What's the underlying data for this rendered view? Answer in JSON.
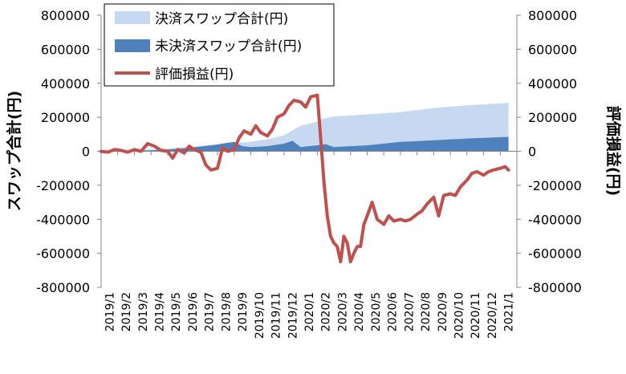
{
  "chart_data": {
    "type": "area+line",
    "title": "",
    "y_left_label": "スワップ合計(円)",
    "y_right_label": "評価損益(円)",
    "ylim": [
      -800000,
      800000
    ],
    "y_ticks": [
      800000,
      600000,
      400000,
      200000,
      0,
      -200000,
      -400000,
      -600000,
      -800000
    ],
    "x_labels": [
      "2019/1",
      "2019/2",
      "2019/3",
      "2019/4",
      "2019/5",
      "2019/6",
      "2019/7",
      "2019/8",
      "2019/9",
      "2019/10",
      "2019/11",
      "2019/12",
      "2020/1",
      "2020/2",
      "2020/3",
      "2020/4",
      "2020/5",
      "2020/6",
      "2020/7",
      "2020/8",
      "2020/9",
      "2020/10",
      "2020/11",
      "2020/12",
      "2021/1"
    ],
    "legend": [
      "決済スワップ合計(円)",
      "未決済スワップ合計(円)",
      "評価損益(円)"
    ],
    "colors": {
      "settled": "#c6d9f1",
      "unsettled": "#4f81bd",
      "pnl": "#c0504d"
    },
    "series": [
      {
        "name": "決済スワップ合計(円)",
        "type": "area",
        "x": [
          0,
          4,
          5,
          8,
          10,
          11,
          12,
          13,
          13.3,
          14,
          18,
          20,
          22,
          24.5
        ],
        "values": [
          0,
          15000,
          25000,
          45000,
          70000,
          95000,
          150000,
          175000,
          190000,
          205000,
          230000,
          255000,
          270000,
          285000
        ]
      },
      {
        "name": "未決済スワップ合計(円)",
        "type": "area",
        "x": [
          0,
          3,
          4,
          5,
          6,
          7,
          7.5,
          8,
          8.5,
          9,
          10,
          11,
          11.5,
          12,
          13,
          13.5,
          14,
          15,
          16,
          18,
          20,
          22,
          24.5
        ],
        "values": [
          0,
          5000,
          10000,
          18000,
          28000,
          40000,
          48000,
          55000,
          30000,
          25000,
          30000,
          45000,
          62000,
          25000,
          35000,
          42000,
          25000,
          30000,
          35000,
          55000,
          65000,
          75000,
          85000
        ]
      },
      {
        "name": "評価損益(円)",
        "type": "line",
        "x": [
          0,
          0.4,
          0.8,
          1.2,
          1.6,
          2,
          2.4,
          2.8,
          3.2,
          3.6,
          4,
          4.3,
          4.6,
          5,
          5.3,
          5.6,
          6,
          6.3,
          6.6,
          7,
          7.3,
          7.6,
          8,
          8.3,
          8.6,
          9,
          9.3,
          9.6,
          10,
          10.3,
          10.6,
          11,
          11.3,
          11.6,
          12,
          12.3,
          12.6,
          13,
          13.3,
          13.4,
          13.6,
          13.8,
          14,
          14.2,
          14.4,
          14.6,
          14.8,
          15,
          15.2,
          15.4,
          15.6,
          15.8,
          16,
          16.3,
          16.6,
          17,
          17.3,
          17.6,
          18,
          18.3,
          18.6,
          19,
          19.3,
          19.6,
          20,
          20.3,
          20.6,
          21,
          21.3,
          21.6,
          22,
          22.3,
          22.6,
          23,
          23.3,
          23.6,
          24,
          24.3,
          24.5
        ],
        "values": [
          0,
          -5000,
          10000,
          5000,
          -5000,
          10000,
          0,
          45000,
          30000,
          5000,
          0,
          -40000,
          10000,
          -10000,
          30000,
          10000,
          -5000,
          -80000,
          -110000,
          -100000,
          20000,
          0,
          10000,
          80000,
          120000,
          100000,
          150000,
          110000,
          90000,
          130000,
          200000,
          220000,
          270000,
          300000,
          290000,
          260000,
          320000,
          330000,
          -50000,
          -180000,
          -380000,
          -500000,
          -540000,
          -560000,
          -650000,
          -500000,
          -540000,
          -650000,
          -600000,
          -560000,
          -560000,
          -430000,
          -380000,
          -300000,
          -400000,
          -430000,
          -380000,
          -410000,
          -400000,
          -410000,
          -400000,
          -370000,
          -350000,
          -310000,
          -270000,
          -380000,
          -260000,
          -250000,
          -260000,
          -210000,
          -170000,
          -130000,
          -120000,
          -140000,
          -120000,
          -110000,
          -100000,
          -90000,
          -110000
        ]
      }
    ]
  }
}
